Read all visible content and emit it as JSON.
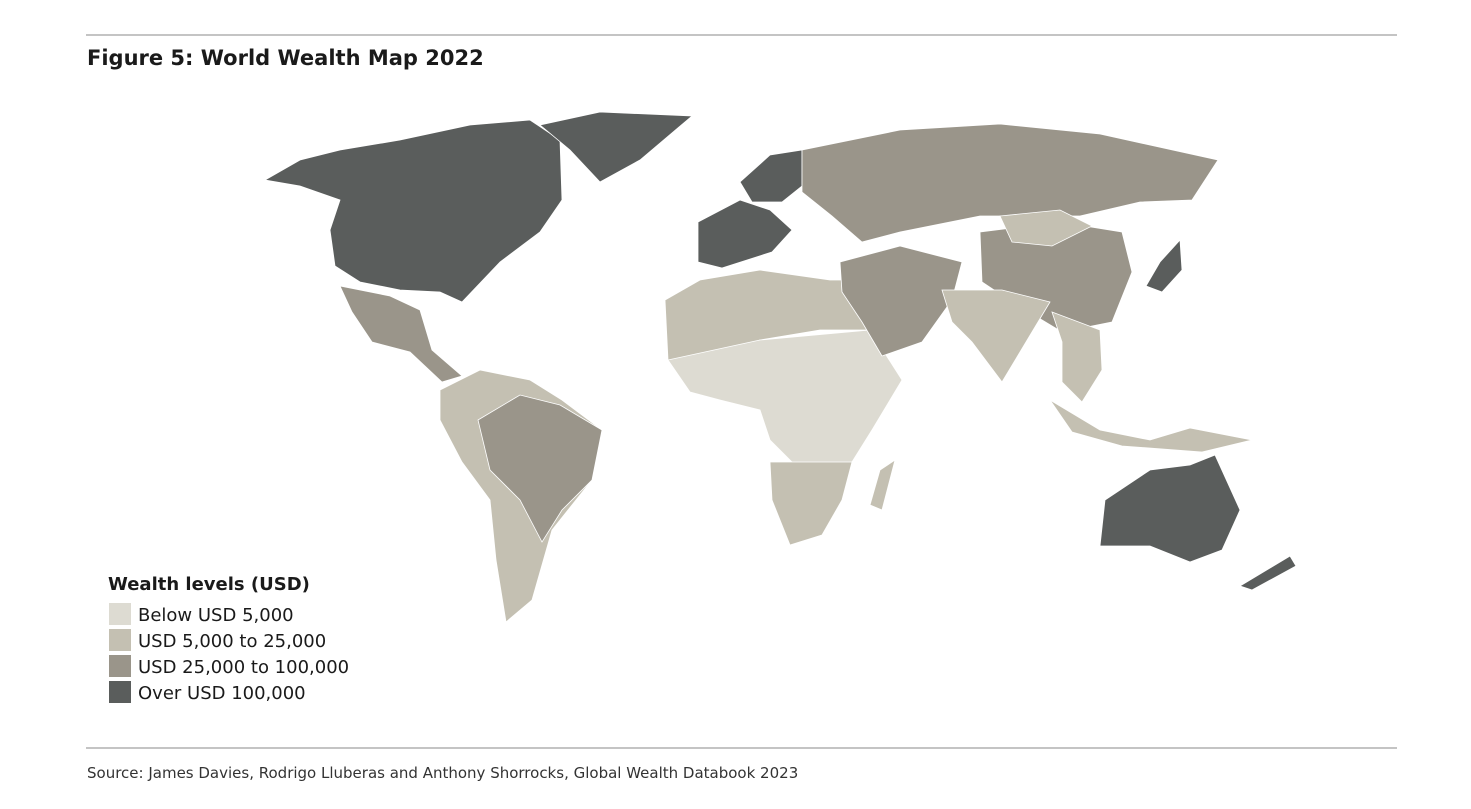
{
  "header": {
    "title": "Figure 5: World Wealth Map 2022"
  },
  "legend": {
    "title": "Wealth levels (USD)",
    "items": [
      {
        "label": "Below USD 5,000",
        "color": "#dddbd2"
      },
      {
        "label": "USD 5,000 to 25,000",
        "color": "#c4c0b2"
      },
      {
        "label": "USD 25,000 to 100,000",
        "color": "#9a958a"
      },
      {
        "label": "Over USD 100,000",
        "color": "#5a5d5c"
      }
    ]
  },
  "source": "Source: James Davies, Rodrigo Lluberas and Anthony Shorrocks, Global Wealth Databook 2023"
}
